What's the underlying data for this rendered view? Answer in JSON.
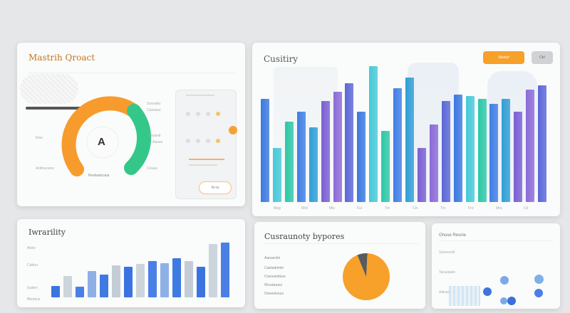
{
  "card1": {
    "title": "Mastrih Qroact",
    "gauge_center_glyph": "A",
    "gauge_bottom_label": "Rsotwwicana",
    "left_labels": [
      "Elsu",
      "Aclimucane"
    ],
    "right_labels": [
      "Sosvatiu",
      "Cassaus",
      "Couantr",
      "Aauuz",
      "Couau"
    ],
    "panel_button": "Ar-ta"
  },
  "card2": {
    "title": "Cusitiry",
    "primary_button": "Sturiurl",
    "secondary_button": "Ctrl",
    "axis_labels": [
      "Mag",
      "Mrd",
      "Mis",
      "Ful",
      "Trn",
      "Ctn",
      "Tro",
      "Fro",
      "Mra",
      "Ctr"
    ]
  },
  "card3": {
    "title": "Iwrarility",
    "axis_labels": [
      "Atoto",
      "Cattuo",
      "Gaiten",
      "Bbotaus"
    ]
  },
  "card4": {
    "title": "Cusraunoty bypores",
    "rows": [
      "Aanuecitn",
      "Caetadomtn",
      "Craoxanttsao",
      "Wcsatrasui",
      "Ooeeotusus"
    ]
  },
  "card5": {
    "title": "Ghose Resnie",
    "labels": [
      "Sasreucttr",
      "Tarautasle",
      "Aalsaslea"
    ]
  },
  "chart_data": [
    {
      "type": "bar",
      "title": "Cusitiry",
      "series_colors": [
        "#3b78e0",
        "#46c9d8",
        "#2bc8a6",
        "#3f7ee6",
        "#2f9ed6",
        "#7b5ed4",
        "#8b6ad8",
        "#5a66d8"
      ],
      "values": [
        80,
        42,
        62,
        70,
        58,
        78,
        85,
        92,
        70,
        105,
        55,
        88,
        96,
        42,
        60,
        78,
        83,
        82,
        80,
        76,
        80,
        70,
        87,
        90
      ]
    },
    {
      "type": "bar",
      "title": "Iwrarility",
      "values": [
        15,
        28,
        14,
        35,
        30,
        42,
        40,
        44,
        48,
        45,
        52,
        48,
        40,
        70,
        72
      ]
    },
    {
      "type": "pie",
      "title": "Cusraunoty bypores",
      "slices": [
        {
          "value": 93,
          "color": "#f7a02a"
        },
        {
          "value": 7,
          "color": "#5a5a5a"
        }
      ]
    }
  ]
}
